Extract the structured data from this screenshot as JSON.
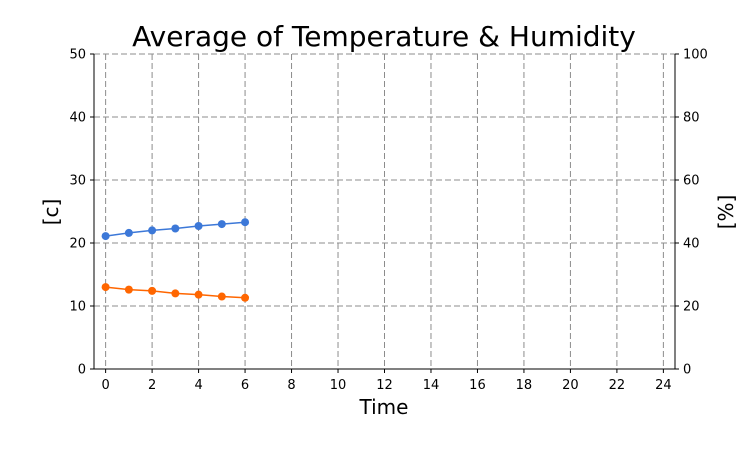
{
  "chart_data": {
    "type": "line",
    "title": "Average of Temperature & Humidity",
    "xlabel": "Time",
    "ylabel_left": "[c]",
    "ylabel_right": "[%]",
    "xlim": [
      -0.5,
      24.5
    ],
    "ylim_left": [
      0,
      50
    ],
    "ylim_right": [
      0,
      100
    ],
    "x_ticks": [
      0,
      2,
      4,
      6,
      8,
      10,
      12,
      14,
      16,
      18,
      20,
      22,
      24
    ],
    "y_ticks_left": [
      0,
      10,
      20,
      30,
      40,
      50
    ],
    "y_ticks_right": [
      0,
      20,
      40,
      60,
      80,
      100
    ],
    "grid": true,
    "x": [
      0,
      1,
      2,
      3,
      4,
      5,
      6
    ],
    "series": [
      {
        "color": "#3c78d8",
        "axis": "left",
        "values": [
          21.1,
          21.6,
          22.0,
          22.3,
          22.7,
          23.0,
          23.3
        ]
      },
      {
        "color": "#ff6600",
        "axis": "left",
        "values": [
          13.0,
          12.6,
          12.4,
          12.0,
          11.8,
          11.5,
          11.3
        ]
      }
    ]
  }
}
